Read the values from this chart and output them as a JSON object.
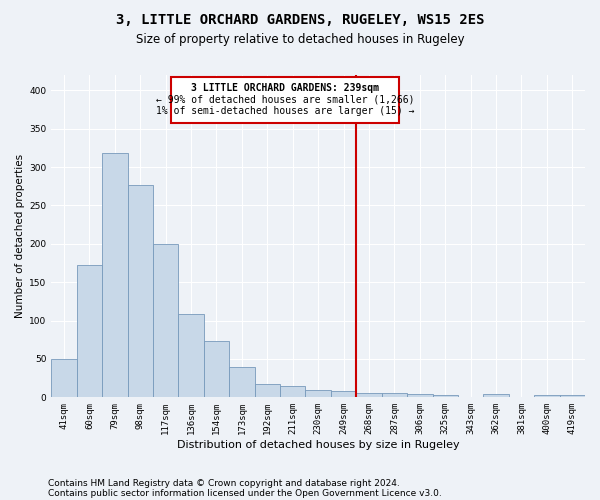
{
  "title": "3, LITTLE ORCHARD GARDENS, RUGELEY, WS15 2ES",
  "subtitle": "Size of property relative to detached houses in Rugeley",
  "xlabel": "Distribution of detached houses by size in Rugeley",
  "ylabel": "Number of detached properties",
  "bins": [
    "41sqm",
    "60sqm",
    "79sqm",
    "98sqm",
    "117sqm",
    "136sqm",
    "154sqm",
    "173sqm",
    "192sqm",
    "211sqm",
    "230sqm",
    "249sqm",
    "268sqm",
    "287sqm",
    "306sqm",
    "325sqm",
    "343sqm",
    "362sqm",
    "381sqm",
    "400sqm",
    "419sqm"
  ],
  "values": [
    50,
    172,
    318,
    277,
    200,
    108,
    73,
    40,
    17,
    15,
    10,
    8,
    6,
    5,
    4,
    3,
    0,
    4,
    0,
    3,
    3
  ],
  "bar_color": "#c8d8e8",
  "bar_edge_color": "#7799bb",
  "vline_color": "#cc0000",
  "annotation_title": "3 LITTLE ORCHARD GARDENS: 239sqm",
  "annotation_line1": "← 99% of detached houses are smaller (1,266)",
  "annotation_line2": "1% of semi-detached houses are larger (15) →",
  "annotation_box_color": "#cc0000",
  "ylim": [
    0,
    420
  ],
  "yticks": [
    0,
    50,
    100,
    150,
    200,
    250,
    300,
    350,
    400
  ],
  "footer1": "Contains HM Land Registry data © Crown copyright and database right 2024.",
  "footer2": "Contains public sector information licensed under the Open Government Licence v3.0.",
  "background_color": "#eef2f7",
  "plot_background_color": "#eef2f7",
  "grid_color": "#ffffff",
  "title_fontsize": 10,
  "subtitle_fontsize": 8.5,
  "ylabel_fontsize": 7.5,
  "xlabel_fontsize": 8,
  "tick_fontsize": 6.5,
  "footer_fontsize": 6.5,
  "ann_fontsize": 7
}
